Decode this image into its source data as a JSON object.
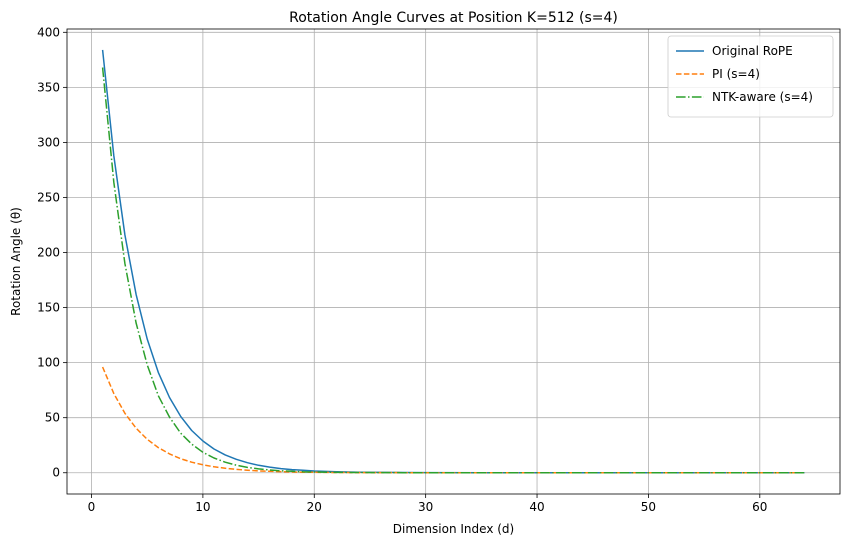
{
  "chart_data": {
    "type": "line",
    "title": "Rotation Angle Curves at Position K=512 (s=4)",
    "xlabel": "Dimension Index (d)",
    "ylabel": "Rotation Angle (θ)",
    "xlim": [
      -2.2,
      67.2
    ],
    "ylim": [
      -19.3,
      403.0
    ],
    "xticks": [
      0,
      10,
      20,
      30,
      40,
      50,
      60
    ],
    "yticks": [
      0,
      50,
      100,
      150,
      200,
      250,
      300,
      350,
      400
    ],
    "grid": true,
    "legend_position": "top-right",
    "x": [
      1,
      2,
      3,
      4,
      5,
      6,
      7,
      8,
      9,
      10,
      11,
      12,
      13,
      14,
      15,
      16,
      17,
      18,
      19,
      20,
      22,
      24,
      26,
      28,
      30,
      35,
      40,
      45,
      50,
      55,
      60,
      64
    ],
    "series": [
      {
        "name": "Original RoPE",
        "color": "#1f77b4",
        "style": "solid",
        "values": [
          384.0,
          288.0,
          216.0,
          162.0,
          121.5,
          91.1,
          68.3,
          51.3,
          38.4,
          28.8,
          21.6,
          16.2,
          12.2,
          9.1,
          6.8,
          5.1,
          3.8,
          2.9,
          2.2,
          1.6,
          0.9,
          0.5,
          0.3,
          0.2,
          0.1,
          0.0,
          0.0,
          0.0,
          0.0,
          0.0,
          0.0,
          0.0
        ]
      },
      {
        "name": "PI (s=4)",
        "color": "#ff7f0e",
        "style": "dashed",
        "values": [
          96.0,
          72.0,
          54.0,
          40.5,
          30.4,
          22.8,
          17.1,
          12.8,
          9.6,
          7.2,
          5.4,
          4.1,
          3.0,
          2.3,
          1.7,
          1.3,
          1.0,
          0.7,
          0.5,
          0.4,
          0.2,
          0.1,
          0.1,
          0.0,
          0.0,
          0.0,
          0.0,
          0.0,
          0.0,
          0.0,
          0.0,
          0.0
        ]
      },
      {
        "name": "NTK-aware (s=4)",
        "color": "#2ca02c",
        "style": "dashdot",
        "values": [
          368.0,
          264.0,
          190.0,
          136.0,
          98.0,
          70.0,
          50.5,
          36.0,
          26.0,
          18.6,
          13.4,
          9.6,
          6.9,
          4.9,
          3.5,
          2.5,
          1.8,
          1.3,
          0.9,
          0.7,
          0.3,
          0.2,
          0.1,
          0.0,
          0.0,
          0.0,
          0.0,
          0.0,
          0.0,
          0.0,
          0.0,
          0.0
        ]
      }
    ]
  }
}
